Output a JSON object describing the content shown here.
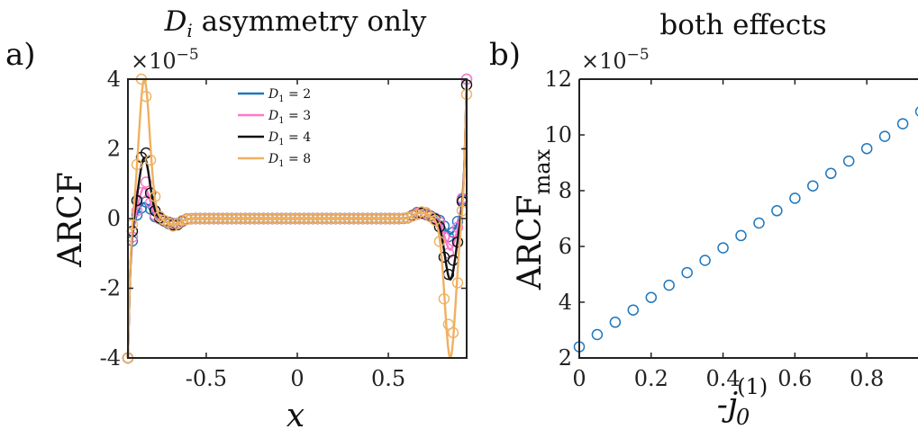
{
  "panel_labels": [
    "a)",
    "b)"
  ],
  "chart_data": [
    {
      "type": "line",
      "title": "D_i asymmetry only",
      "xlabel": "x",
      "ylabel": "ARCF",
      "exponent_label": "×10",
      "exponent": "−5",
      "xlim": [
        -0.93,
        0.93
      ],
      "ylim": [
        -4,
        4
      ],
      "xticks": [
        -0.5,
        0,
        0.5
      ],
      "xtick_labels": [
        "-0.5",
        "0",
        "0.5"
      ],
      "yticks": [
        -4,
        -2,
        0,
        2,
        4
      ],
      "ytick_labels": [
        "-4",
        "-2",
        "0",
        "2",
        "4"
      ],
      "grid": false,
      "legend_position": "top-center",
      "series": [
        {
          "name": "D1 = 2",
          "legend_main": "D",
          "legend_sub": "1",
          "legend_value": " = 2",
          "color": "#1f77bd",
          "amplitude": 0.45,
          "edge": 3.9
        },
        {
          "name": "D1 = 3",
          "legend_main": "D",
          "legend_sub": "1",
          "legend_value": " = 3",
          "color": "#ff77cc",
          "amplitude": 0.9,
          "edge": 3.9
        },
        {
          "name": "D1 = 4",
          "legend_main": "D",
          "legend_sub": "1",
          "legend_value": " = 4",
          "color": "#111111",
          "amplitude": 1.75,
          "edge": 3.9
        },
        {
          "name": "D1 = 8",
          "legend_main": "D",
          "legend_sub": "1",
          "legend_value": " = 8",
          "color": "#f0b060",
          "amplitude": 4.0,
          "edge": 4.0
        }
      ]
    },
    {
      "type": "scatter",
      "title": "both effects",
      "ylabel_main": "ARCF",
      "ylabel_sub": "max",
      "xlabel_main": "-j",
      "xlabel_sub": "0",
      "xlabel_sup": "(1)",
      "exponent_label": "×10",
      "exponent": "−5",
      "xlim": [
        0,
        0.95
      ],
      "ylim": [
        2,
        12
      ],
      "xticks": [
        0,
        0.2,
        0.4,
        0.6,
        0.8
      ],
      "xtick_labels": [
        "0",
        "0.2",
        "0.4",
        "0.6",
        "0.8"
      ],
      "yticks": [
        2,
        4,
        6,
        8,
        10,
        12
      ],
      "ytick_labels": [
        "2",
        "4",
        "6",
        "8",
        "10",
        "12"
      ],
      "grid": false,
      "marker_color": "#1f77bd",
      "x": [
        0,
        0.05,
        0.1,
        0.15,
        0.2,
        0.25,
        0.3,
        0.35,
        0.4,
        0.45,
        0.5,
        0.55,
        0.6,
        0.65,
        0.7,
        0.75,
        0.8,
        0.85,
        0.9,
        0.95
      ],
      "y": [
        2.4,
        2.84,
        3.28,
        3.72,
        4.17,
        4.61,
        5.06,
        5.5,
        5.95,
        6.39,
        6.84,
        7.28,
        7.73,
        8.17,
        8.62,
        9.06,
        9.51,
        9.95,
        10.4,
        10.84
      ]
    }
  ]
}
